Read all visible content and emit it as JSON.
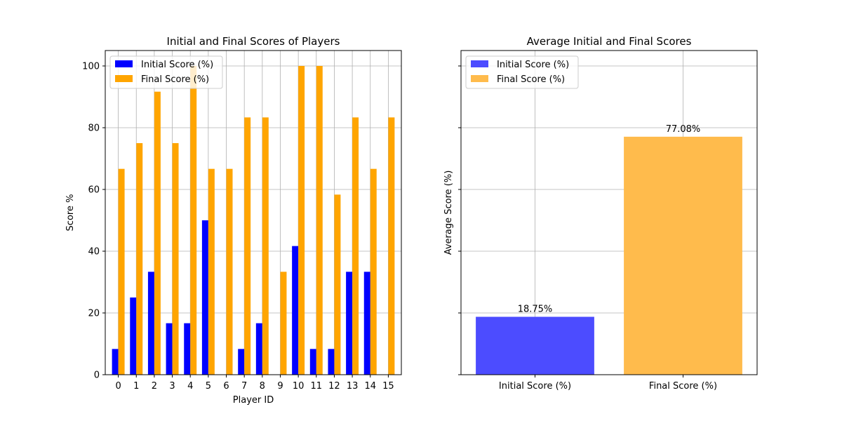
{
  "chart_data": [
    {
      "type": "bar",
      "title": "Initial and Final Scores of Players",
      "xlabel": "Player ID",
      "ylabel": "Score %",
      "categories": [
        "0",
        "1",
        "2",
        "3",
        "4",
        "5",
        "6",
        "7",
        "8",
        "9",
        "10",
        "11",
        "12",
        "13",
        "14",
        "15"
      ],
      "ylim": [
        0,
        105
      ],
      "yticks": [
        "0",
        "20",
        "40",
        "60",
        "80",
        "100"
      ],
      "grid": true,
      "legend_position": "upper-left",
      "series": [
        {
          "name": "Initial Score (%)",
          "color": "#0000ff",
          "values": [
            8.33,
            25.0,
            33.33,
            16.67,
            16.67,
            50.0,
            0,
            8.33,
            16.67,
            0,
            41.67,
            8.33,
            8.33,
            33.33,
            33.33,
            0
          ]
        },
        {
          "name": "Final Score (%)",
          "color": "#ffa500",
          "values": [
            66.67,
            75.0,
            91.67,
            75.0,
            100.0,
            66.67,
            66.67,
            83.33,
            83.33,
            33.33,
            100.0,
            100.0,
            58.33,
            83.33,
            66.67,
            83.33
          ]
        }
      ]
    },
    {
      "type": "bar",
      "title": "Average Initial and Final Scores",
      "xlabel": "",
      "ylabel": "Average Score (%)",
      "categories": [
        "Initial Score (%)",
        "Final Score (%)"
      ],
      "values": [
        18.75,
        77.08
      ],
      "value_labels": [
        "18.75%",
        "77.08%"
      ],
      "colors": [
        "#4c4cff",
        "#ffbb4c"
      ],
      "ylim": [
        0,
        105
      ],
      "grid": true,
      "legend_position": "upper-left",
      "legend": [
        {
          "name": "Initial Score (%)",
          "color": "#4c4cff"
        },
        {
          "name": "Final Score (%)",
          "color": "#ffbb4c"
        }
      ]
    }
  ]
}
